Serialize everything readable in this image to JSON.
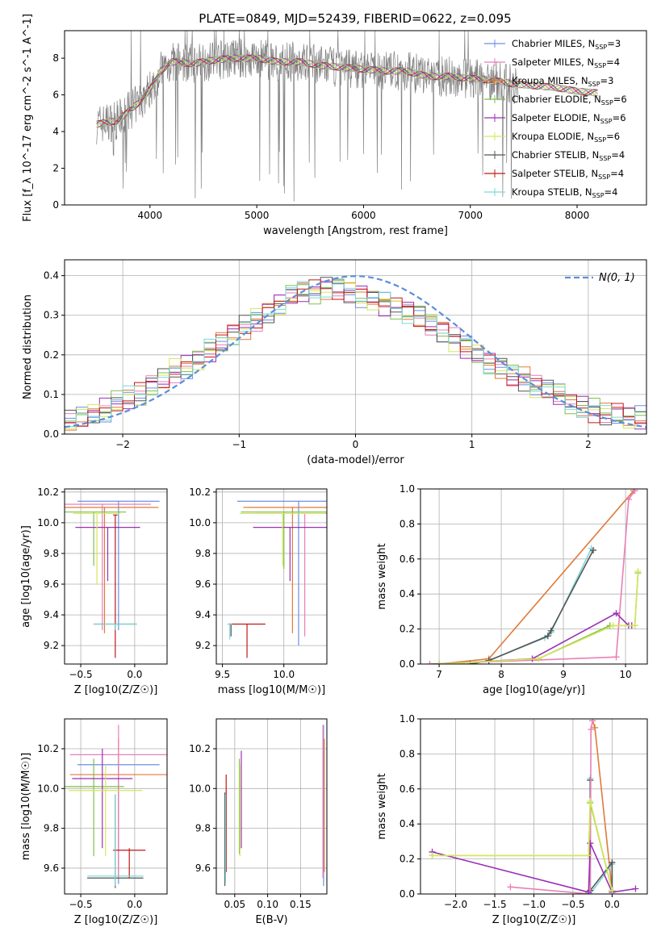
{
  "figure_title": "PLATE=0849, MJD=52439, FIBERID=0622, z=0.095",
  "legend_entries": [
    {
      "label": "Chabrier MILES, N",
      "sub": "SSP",
      "tail": "=3",
      "color": "#6b8fe6"
    },
    {
      "label": "Salpeter MILES, N",
      "sub": "SSP",
      "tail": "=4",
      "color": "#e87fb8"
    },
    {
      "label": "Kroupa MILES, N",
      "sub": "SSP",
      "tail": "=3",
      "color": "#e07a3a"
    },
    {
      "label": "Chabrier ELODIE, N",
      "sub": "SSP",
      "tail": "=6",
      "color": "#7fbf4d"
    },
    {
      "label": "Salpeter ELODIE, N",
      "sub": "SSP",
      "tail": "=6",
      "color": "#9b2fb5"
    },
    {
      "label": "Kroupa ELODIE, N",
      "sub": "SSP",
      "tail": "=6",
      "color": "#d6e65a"
    },
    {
      "label": "Chabrier STELIB, N",
      "sub": "SSP",
      "tail": "=4",
      "color": "#555555"
    },
    {
      "label": "Salpeter STELIB, N",
      "sub": "SSP",
      "tail": "=4",
      "color": "#c01818"
    },
    {
      "label": "Kroupa STELIB, N",
      "sub": "SSP",
      "tail": "=4",
      "color": "#7fd6d6"
    }
  ],
  "chart_data": [
    {
      "id": "spectrum",
      "type": "line",
      "xlabel": "wavelength [Angstrom, rest frame]",
      "ylabel": "Flux [f_λ 10^-17 erg cm^-2 s^-1 A^-1]",
      "xlim": [
        3200,
        8650
      ],
      "ylim": [
        0,
        9.5
      ],
      "xticks": [
        4000,
        5000,
        6000,
        7000,
        8000
      ],
      "yticks": [
        0,
        2,
        4,
        6,
        8
      ],
      "observed_color": "#808080",
      "model_color": "#7fd6d6",
      "model_profile": [
        [
          3500,
          4.4
        ],
        [
          3700,
          4.6
        ],
        [
          3900,
          5.6
        ],
        [
          4000,
          6.3
        ],
        [
          4100,
          7.3
        ],
        [
          4200,
          7.8
        ],
        [
          4400,
          7.7
        ],
        [
          4600,
          7.9
        ],
        [
          4800,
          8.0
        ],
        [
          5000,
          8.0
        ],
        [
          5200,
          7.8
        ],
        [
          5400,
          7.8
        ],
        [
          5600,
          7.6
        ],
        [
          5800,
          7.5
        ],
        [
          6000,
          7.4
        ],
        [
          6200,
          7.3
        ],
        [
          6400,
          7.3
        ],
        [
          6600,
          7.0
        ],
        [
          6800,
          7.0
        ],
        [
          7000,
          6.9
        ],
        [
          7200,
          6.8
        ],
        [
          7400,
          6.6
        ],
        [
          7600,
          6.5
        ],
        [
          7800,
          6.4
        ],
        [
          8000,
          6.2
        ],
        [
          8200,
          6.1
        ]
      ],
      "observed_range": [
        3500,
        7450
      ],
      "model_range": [
        3500,
        8200
      ],
      "grid": false
    },
    {
      "id": "residuals",
      "type": "area",
      "xlabel": "(data-model)/error",
      "ylabel": "Normed distribution",
      "xlim": [
        -2.5,
        2.5
      ],
      "ylim": [
        0,
        0.44
      ],
      "xticks": [
        -2,
        -1,
        0,
        1,
        2
      ],
      "yticks": [
        0.0,
        0.1,
        0.2,
        0.3,
        0.4
      ],
      "legend": "N(0, 1)",
      "legend_position": "top-right",
      "gaussian_color": "#5b8fd9",
      "hist_levels": [
        0.03,
        0.04,
        0.05,
        0.06,
        0.08,
        0.09,
        0.1,
        0.12,
        0.14,
        0.16,
        0.17,
        0.19,
        0.21,
        0.23,
        0.25,
        0.27,
        0.29,
        0.31,
        0.33,
        0.35,
        0.36,
        0.36,
        0.37,
        0.37,
        0.36,
        0.35,
        0.34,
        0.33,
        0.32,
        0.31,
        0.3,
        0.28,
        0.26,
        0.24,
        0.22,
        0.2,
        0.18,
        0.17,
        0.15,
        0.14,
        0.12,
        0.11,
        0.1,
        0.08,
        0.07,
        0.06,
        0.05,
        0.05,
        0.04,
        0.04
      ],
      "grid": true
    },
    {
      "id": "age-vs-z",
      "type": "scatter",
      "xlabel": "Z [log10(Z/Z☉)]",
      "ylabel": "age [log10(age/yr)]",
      "xlim": [
        -0.65,
        0.3
      ],
      "ylim": [
        9.08,
        10.22
      ],
      "xticks": [
        -0.5,
        0.0
      ],
      "yticks": [
        9.2,
        9.4,
        9.6,
        9.8,
        10.0,
        10.2
      ],
      "points": [
        {
          "x": -0.15,
          "y": 10.14,
          "xerr": 0.38,
          "ylo": 9.3,
          "color": "#6b8fe6"
        },
        {
          "x": -0.28,
          "y": 10.1,
          "xerr": 0.5,
          "ylo": 9.28,
          "color": "#e07a3a"
        },
        {
          "x": -0.3,
          "y": 10.12,
          "xerr": 0.45,
          "ylo": 9.3,
          "color": "#e87fb8"
        },
        {
          "x": -0.38,
          "y": 10.07,
          "xerr": 0.3,
          "ylo": 9.72,
          "color": "#7fbf4d"
        },
        {
          "x": -0.25,
          "y": 9.97,
          "xerr": 0.3,
          "ylo": 9.62,
          "color": "#9b2fb5"
        },
        {
          "x": -0.35,
          "y": 10.06,
          "xerr": 0.22,
          "ylo": 9.6,
          "color": "#d6e65a"
        },
        {
          "x": -0.18,
          "y": 9.34,
          "xerr": 0.2,
          "ylo": 9.3,
          "color": "#555555"
        },
        {
          "x": -0.18,
          "y": 10.05,
          "xerr": 0.02,
          "ylo": 9.12,
          "color": "#c01818"
        },
        {
          "x": -0.18,
          "y": 9.34,
          "xerr": 0.2,
          "ylo": 9.3,
          "color": "#7fd6d6"
        }
      ],
      "grid": true
    },
    {
      "id": "age-vs-mass",
      "type": "scatter",
      "xlabel": "mass [log10(M/M☉)]",
      "ylabel": "",
      "xlim": [
        9.45,
        10.35
      ],
      "ylim": [
        9.08,
        10.22
      ],
      "xticks": [
        9.5,
        10.0
      ],
      "yticks": [
        9.2,
        9.4,
        9.6,
        9.8,
        10.0,
        10.2
      ],
      "points": [
        {
          "x": 10.12,
          "y": 10.14,
          "xerr": 0.5,
          "ylo": 9.2,
          "color": "#6b8fe6"
        },
        {
          "x": 10.07,
          "y": 10.1,
          "xerr": 0.4,
          "ylo": 9.28,
          "color": "#e07a3a"
        },
        {
          "x": 10.17,
          "y": 10.06,
          "xerr": 0.4,
          "ylo": 9.26,
          "color": "#e87fb8"
        },
        {
          "x": 10.0,
          "y": 10.07,
          "xerr": 0.35,
          "ylo": 9.7,
          "color": "#7fbf4d"
        },
        {
          "x": 10.05,
          "y": 9.97,
          "xerr": 0.3,
          "ylo": 9.62,
          "color": "#9b2fb5"
        },
        {
          "x": 9.99,
          "y": 10.06,
          "xerr": 0.35,
          "ylo": 9.72,
          "color": "#d6e65a"
        },
        {
          "x": 9.57,
          "y": 9.34,
          "xerr": 0.02,
          "ylo": 9.26,
          "color": "#555555"
        },
        {
          "x": 9.7,
          "y": 9.34,
          "xerr": 0.15,
          "ylo": 9.12,
          "color": "#c01818"
        },
        {
          "x": 9.56,
          "y": 9.34,
          "xerr": 0.02,
          "ylo": 9.24,
          "color": "#7fd6d6"
        }
      ],
      "grid": true
    },
    {
      "id": "mass-weight-vs-age",
      "type": "line",
      "xlabel": "age [log10(age/yr)]",
      "ylabel": "mass weight",
      "xlim": [
        6.7,
        10.35
      ],
      "ylim": [
        0,
        1.0
      ],
      "xticks": [
        7,
        8,
        9,
        10
      ],
      "yticks": [
        0.0,
        0.2,
        0.4,
        0.6,
        0.8,
        1.0
      ],
      "series": [
        {
          "color": "#e07a3a",
          "x": [
            7.0,
            7.8,
            10.13
          ],
          "y": [
            0.0,
            0.03,
            0.99
          ]
        },
        {
          "color": "#7fd6d6",
          "x": [
            7.5,
            7.8,
            8.7,
            8.8,
            9.45
          ],
          "y": [
            0.0,
            0.02,
            0.15,
            0.18,
            0.66
          ]
        },
        {
          "color": "#555555",
          "x": [
            7.5,
            7.8,
            8.75,
            8.8,
            9.48
          ],
          "y": [
            0.0,
            0.02,
            0.16,
            0.19,
            0.65
          ]
        },
        {
          "color": "#e87fb8",
          "x": [
            6.85,
            9.85,
            10.05,
            10.15
          ],
          "y": [
            0.0,
            0.04,
            0.94,
            0.99
          ]
        },
        {
          "color": "#9b2fb5",
          "x": [
            7.0,
            8.5,
            9.85,
            10.05,
            10.1
          ],
          "y": [
            0.0,
            0.03,
            0.29,
            0.22,
            0.22
          ]
        },
        {
          "color": "#7fbf4d",
          "x": [
            7.0,
            8.6,
            9.75,
            10.15,
            10.2
          ],
          "y": [
            0.0,
            0.03,
            0.22,
            0.22,
            0.52
          ]
        },
        {
          "color": "#d6e65a",
          "x": [
            7.0,
            8.6,
            9.8,
            10.15,
            10.2
          ],
          "y": [
            0.0,
            0.03,
            0.22,
            0.22,
            0.53
          ]
        }
      ],
      "grid": true
    },
    {
      "id": "mass-vs-z",
      "type": "scatter",
      "xlabel": "Z [log10(Z/Z☉)]",
      "ylabel": "mass [log10(M/M☉)]",
      "xlim": [
        -0.65,
        0.3
      ],
      "ylim": [
        9.47,
        10.35
      ],
      "xticks": [
        -0.5,
        0.0
      ],
      "yticks": [
        9.6,
        9.8,
        10.0,
        10.2
      ],
      "points": [
        {
          "x": -0.15,
          "y": 10.12,
          "xerr": 0.38,
          "ylo": 9.52,
          "yhi": 10.15,
          "color": "#6b8fe6"
        },
        {
          "x": -0.15,
          "y": 10.07,
          "xerr": 0.45,
          "ylo": 9.55,
          "yhi": 10.25,
          "color": "#e07a3a"
        },
        {
          "x": -0.15,
          "y": 10.17,
          "xerr": 0.45,
          "ylo": 9.55,
          "yhi": 10.32,
          "color": "#e87fb8"
        },
        {
          "x": -0.38,
          "y": 10.01,
          "xerr": 0.28,
          "ylo": 9.66,
          "yhi": 10.15,
          "color": "#7fbf4d"
        },
        {
          "x": -0.3,
          "y": 10.05,
          "xerr": 0.28,
          "ylo": 9.7,
          "yhi": 10.2,
          "color": "#9b2fb5"
        },
        {
          "x": -0.27,
          "y": 9.99,
          "xerr": 0.34,
          "ylo": 9.66,
          "yhi": 10.12,
          "color": "#d6e65a"
        },
        {
          "x": -0.18,
          "y": 9.55,
          "xerr": 0.26,
          "ylo": 9.5,
          "yhi": 9.97,
          "color": "#555555"
        },
        {
          "x": -0.05,
          "y": 9.69,
          "xerr": 0.15,
          "ylo": 9.55,
          "yhi": 9.7,
          "color": "#c01818"
        },
        {
          "x": -0.18,
          "y": 9.56,
          "xerr": 0.26,
          "ylo": 9.51,
          "yhi": 9.97,
          "color": "#7fd6d6"
        }
      ],
      "grid": true
    },
    {
      "id": "mass-vs-ebv",
      "type": "scatter",
      "xlabel": "E(B-V)",
      "ylabel": "",
      "xlim": [
        0.022,
        0.19
      ],
      "ylim": [
        9.47,
        10.35
      ],
      "xticks": [
        0.05,
        0.1,
        0.15
      ],
      "yticks": [
        9.6,
        9.8,
        10.0,
        10.2
      ],
      "points": [
        {
          "x": 0.185,
          "y": 9.7,
          "ylo": 9.51,
          "yhi": 10.32,
          "color": "#6b8fe6"
        },
        {
          "x": 0.186,
          "y": 9.75,
          "ylo": 9.58,
          "yhi": 10.25,
          "color": "#e07a3a"
        },
        {
          "x": 0.184,
          "y": 9.8,
          "ylo": 9.55,
          "yhi": 10.32,
          "color": "#e87fb8"
        },
        {
          "x": 0.057,
          "y": 9.9,
          "ylo": 9.67,
          "yhi": 10.15,
          "color": "#7fbf4d"
        },
        {
          "x": 0.06,
          "y": 9.95,
          "ylo": 9.7,
          "yhi": 10.19,
          "color": "#9b2fb5"
        },
        {
          "x": 0.058,
          "y": 9.9,
          "ylo": 9.66,
          "yhi": 10.12,
          "color": "#d6e65a"
        },
        {
          "x": 0.035,
          "y": 9.7,
          "ylo": 9.51,
          "yhi": 9.98,
          "color": "#555555"
        },
        {
          "x": 0.037,
          "y": 9.8,
          "ylo": 9.58,
          "yhi": 10.07,
          "color": "#c01818"
        },
        {
          "x": 0.036,
          "y": 9.7,
          "ylo": 9.53,
          "yhi": 9.97,
          "color": "#7fd6d6"
        }
      ],
      "grid": true
    },
    {
      "id": "mass-weight-vs-z",
      "type": "line",
      "xlabel": "Z [log10(Z/Z☉)]",
      "ylabel": "mass weight",
      "xlim": [
        -2.45,
        0.45
      ],
      "ylim": [
        0,
        1.0
      ],
      "xticks": [
        -2.0,
        -1.5,
        -1.0,
        -0.5,
        0.0
      ],
      "yticks": [
        0.0,
        0.2,
        0.4,
        0.6,
        0.8,
        1.0
      ],
      "series": [
        {
          "color": "#e07a3a",
          "x": [
            -0.25,
            -0.22,
            0.0
          ],
          "y": [
            0.99,
            0.95,
            0.02
          ]
        },
        {
          "color": "#7fd6d6",
          "x": [
            -0.28,
            -0.28,
            0.0,
            0.0
          ],
          "y": [
            0.66,
            0.0,
            0.17,
            0.0
          ]
        },
        {
          "color": "#555555",
          "x": [
            -0.28,
            -0.28,
            0.0,
            0.0
          ],
          "y": [
            0.65,
            0.02,
            0.18,
            0.02
          ]
        },
        {
          "color": "#e87fb8",
          "x": [
            -1.3,
            -0.28,
            -0.27,
            -0.25
          ],
          "y": [
            0.04,
            0.0,
            0.94,
            0.99
          ]
        },
        {
          "color": "#9b2fb5",
          "x": [
            -2.3,
            -0.3,
            -0.28,
            0.0,
            0.3
          ],
          "y": [
            0.24,
            0.01,
            0.29,
            0.01,
            0.03
          ]
        },
        {
          "color": "#7fbf4d",
          "x": [
            -2.3,
            -0.3,
            -0.28,
            0.0
          ],
          "y": [
            0.22,
            0.22,
            0.52,
            0.02
          ]
        },
        {
          "color": "#d6e65a",
          "x": [
            -2.3,
            -0.3,
            -0.28,
            0.0
          ],
          "y": [
            0.22,
            0.22,
            0.53,
            0.02
          ]
        }
      ],
      "grid": true
    }
  ]
}
